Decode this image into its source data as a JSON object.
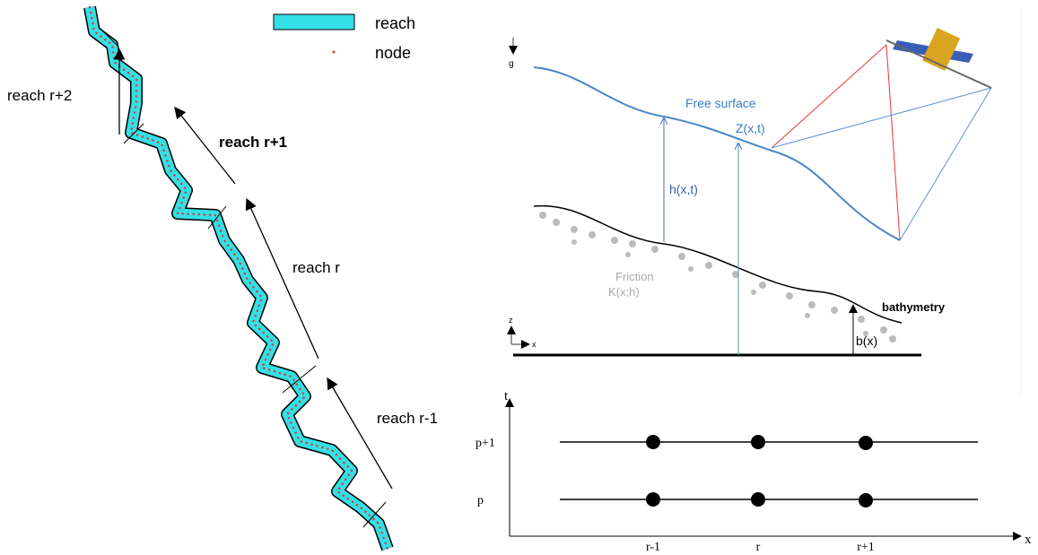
{
  "legend": {
    "items": [
      {
        "label": "reach"
      },
      {
        "label": "node"
      }
    ]
  },
  "river": {
    "reach_labels": [
      "reach r+2",
      "reach r+1",
      "reach r",
      "reach r-1"
    ]
  },
  "profile": {
    "gravity": "g",
    "free_surface": "Free surface",
    "surface_elevation": "Z(x,t)",
    "depth": "h(x,t)",
    "friction": "Friction",
    "friction_law": "K(x;h)",
    "bathymetry": "bathymetry",
    "bed": "b(x)",
    "axis_z": "z",
    "axis_x": "x"
  },
  "grid": {
    "time_axis": "t",
    "space_axis": "x",
    "time_levels": [
      "p+1",
      "p"
    ],
    "nodes": [
      "r-1",
      "r",
      "r+1"
    ]
  }
}
